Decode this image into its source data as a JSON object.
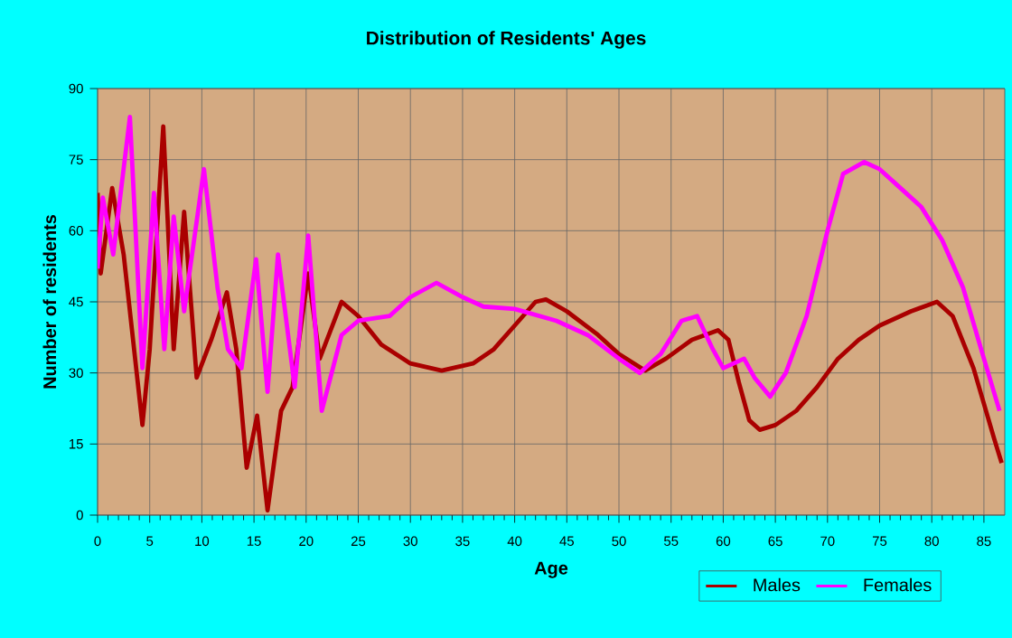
{
  "chart_data": {
    "type": "line",
    "title": "Distribution of Residents' Ages",
    "xlabel": "Age",
    "ylabel": "Number of residents",
    "xlim": [
      0,
      87
    ],
    "xticks": [
      0,
      5,
      10,
      15,
      20,
      25,
      30,
      35,
      40,
      45,
      50,
      55,
      60,
      65,
      70,
      75,
      80,
      85
    ],
    "ylim": [
      0,
      90
    ],
    "yticks": [
      0,
      15,
      30,
      45,
      60,
      75,
      90
    ],
    "grid": true,
    "legend": "bottom right",
    "marker": "none",
    "line_style": "solid",
    "series": [
      {
        "name": "Males",
        "color": "#aa0000",
        "x": [
          0,
          0.3,
          1.4,
          2.5,
          4.3,
          5,
          6.3,
          7.3,
          8.3,
          9.5,
          10.9,
          12.4,
          13.3,
          14.3,
          15.3,
          16.3,
          17.6,
          18.7,
          20.2,
          21.3,
          23.4,
          25,
          27.2,
          30,
          33,
          36,
          38,
          40,
          42,
          43,
          45,
          48,
          50,
          52.5,
          54.5,
          57,
          59.5,
          60.5,
          61.5,
          62.5,
          63.5,
          65,
          67,
          69,
          71,
          73,
          75,
          78,
          80.5,
          82,
          84,
          86,
          86.7
        ],
        "values": [
          68,
          51,
          69,
          55,
          19,
          35,
          82,
          35,
          64,
          29,
          37,
          47,
          35,
          10,
          21,
          1,
          22,
          27,
          51,
          33,
          45,
          42,
          36,
          32,
          30.5,
          32,
          35,
          40,
          45,
          45.5,
          43,
          38,
          34,
          30.5,
          33,
          37,
          39,
          37,
          28,
          20,
          18,
          19,
          22,
          27,
          33,
          37,
          40,
          43,
          45,
          42,
          31,
          16,
          11
        ]
      },
      {
        "name": "Females",
        "color": "#ff00ff",
        "x": [
          0,
          0.5,
          1.5,
          3.1,
          4.3,
          5.4,
          6.4,
          7.3,
          8.3,
          10.2,
          11.5,
          12.5,
          13.8,
          15.2,
          16.3,
          17.3,
          18.9,
          20.2,
          21.5,
          23.4,
          25,
          28,
          30,
          32.5,
          35,
          37,
          40,
          44,
          47,
          50,
          52,
          54,
          56,
          57.5,
          59,
          60,
          62,
          63,
          64.5,
          66,
          68,
          70,
          71.5,
          73.5,
          75,
          77,
          79,
          81,
          83,
          85,
          86.5
        ],
        "values": [
          52,
          67,
          55,
          84,
          31,
          68,
          35,
          63,
          43,
          73,
          48,
          35,
          31,
          54,
          26,
          55,
          27,
          59,
          22,
          38,
          41,
          42,
          46,
          49,
          46,
          44,
          43.5,
          41,
          38,
          33,
          30,
          34,
          41,
          42,
          35,
          31,
          33,
          29,
          25,
          30,
          42,
          60,
          72,
          74.5,
          73,
          69,
          65,
          58,
          48,
          33,
          22
        ]
      }
    ]
  }
}
